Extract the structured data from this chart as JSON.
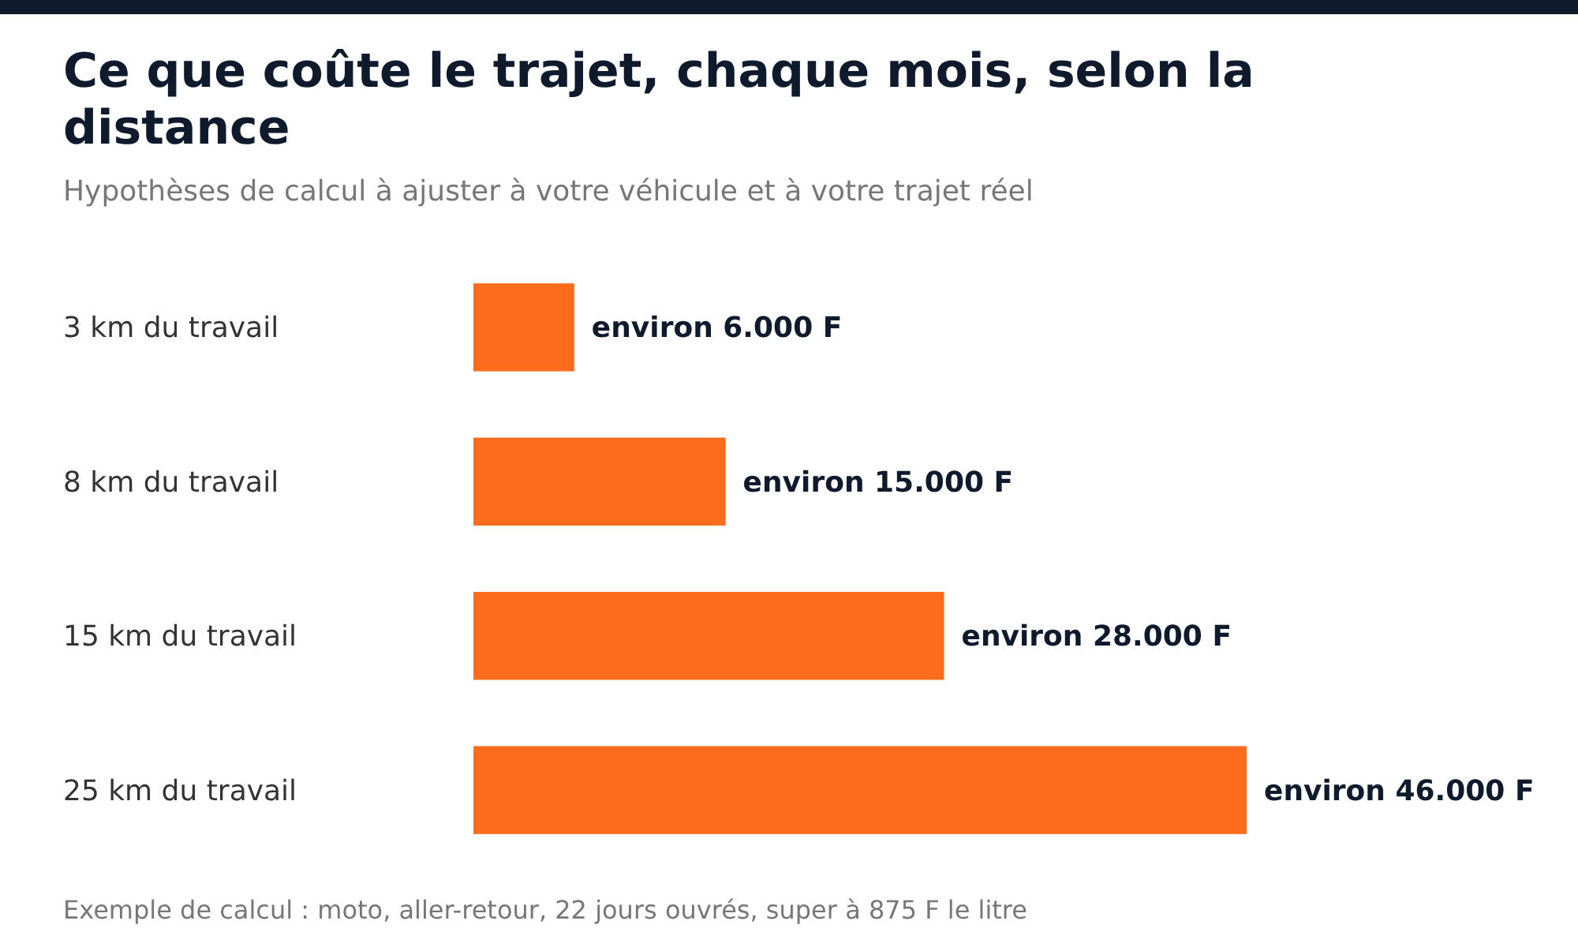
{
  "chart_data": {
    "type": "bar",
    "orientation": "horizontal",
    "title": "Ce que coûte le trajet, chaque mois, selon la distance",
    "subtitle": "Hypothèses de calcul à ajuster à votre véhicule et à votre trajet réel",
    "categories": [
      "3 km du travail",
      "8 km du travail",
      "15 km du travail",
      "25 km du travail"
    ],
    "values": [
      6000,
      15000,
      28000,
      46000
    ],
    "value_labels": [
      "environ 6.000 F",
      "environ 15.000 F",
      "environ 28.000 F",
      "environ 46.000 F"
    ],
    "color": "#fd6b1c",
    "annotations": [
      "Exemple de calcul : moto, aller-retour, 22 jours ouvrés, super à 875 F le litre"
    ]
  }
}
